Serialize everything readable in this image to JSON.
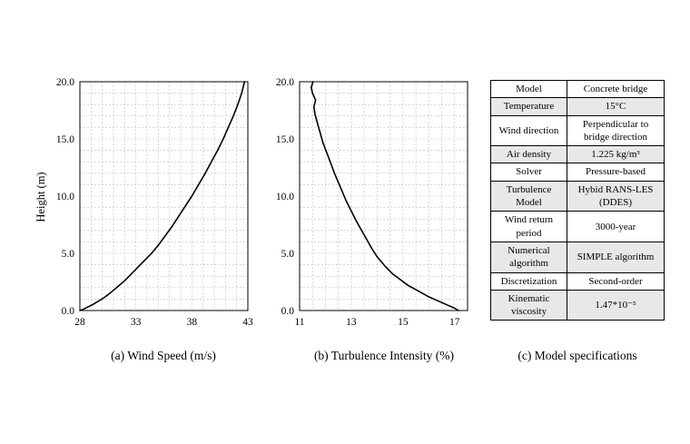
{
  "figure": {
    "captions": {
      "a": "(a) Wind Speed (m/s)",
      "b": "(b) Turbulence Intensity (%)",
      "c": "(c) Model specifications"
    }
  },
  "chart_data": [
    {
      "type": "line",
      "name": "wind-speed-profile",
      "xlabel": "Wind Speed (m/s)",
      "ylabel": "Height (m)",
      "xlim": [
        28,
        43
      ],
      "ylim": [
        0,
        20
      ],
      "xticks": [
        28,
        33,
        38,
        43
      ],
      "yticks": [
        0,
        5,
        10,
        15,
        20
      ],
      "xtick_decimals": 0,
      "ytick_decimals": 1,
      "grid": true,
      "grid_x_step": 1,
      "grid_y_step": 1,
      "line_color": "#000000",
      "points": [
        [
          28.0,
          0.0
        ],
        [
          28.3,
          0.1
        ],
        [
          28.7,
          0.3
        ],
        [
          29.2,
          0.55
        ],
        [
          29.7,
          0.85
        ],
        [
          30.2,
          1.15
        ],
        [
          30.8,
          1.6
        ],
        [
          31.4,
          2.1
        ],
        [
          32.0,
          2.6
        ],
        [
          32.6,
          3.2
        ],
        [
          33.2,
          3.8
        ],
        [
          33.8,
          4.4
        ],
        [
          34.4,
          5.0
        ],
        [
          35.0,
          5.7
        ],
        [
          35.6,
          6.5
        ],
        [
          36.2,
          7.3
        ],
        [
          36.8,
          8.2
        ],
        [
          37.4,
          9.1
        ],
        [
          38.0,
          10.0
        ],
        [
          38.6,
          11.0
        ],
        [
          39.2,
          12.0
        ],
        [
          39.8,
          13.1
        ],
        [
          40.3,
          14.0
        ],
        [
          40.8,
          15.0
        ],
        [
          41.3,
          16.1
        ],
        [
          41.7,
          17.0
        ],
        [
          42.1,
          18.0
        ],
        [
          42.45,
          19.0
        ],
        [
          42.7,
          20.0
        ]
      ]
    },
    {
      "type": "line",
      "name": "turbulence-intensity-profile",
      "xlabel": "Turbulence Intensity (%)",
      "xlim": [
        11,
        17.5
      ],
      "ylim": [
        0,
        20
      ],
      "xticks": [
        11,
        13,
        15,
        17
      ],
      "yticks": [
        0,
        5,
        10,
        15,
        20
      ],
      "xtick_decimals": 0,
      "ytick_decimals": 1,
      "grid": true,
      "grid_x_step": 0.5,
      "grid_y_step": 1,
      "line_color": "#000000",
      "points": [
        [
          17.15,
          0.0
        ],
        [
          17.0,
          0.2
        ],
        [
          16.7,
          0.5
        ],
        [
          16.3,
          0.9
        ],
        [
          16.0,
          1.2
        ],
        [
          15.6,
          1.7
        ],
        [
          15.2,
          2.2
        ],
        [
          14.9,
          2.7
        ],
        [
          14.6,
          3.2
        ],
        [
          14.3,
          3.9
        ],
        [
          14.0,
          4.7
        ],
        [
          13.8,
          5.4
        ],
        [
          13.6,
          6.2
        ],
        [
          13.4,
          7.0
        ],
        [
          13.2,
          7.8
        ],
        [
          13.0,
          8.7
        ],
        [
          12.8,
          9.6
        ],
        [
          12.65,
          10.4
        ],
        [
          12.5,
          11.2
        ],
        [
          12.35,
          12.0
        ],
        [
          12.2,
          12.9
        ],
        [
          12.05,
          13.8
        ],
        [
          11.9,
          14.7
        ],
        [
          11.8,
          15.5
        ],
        [
          11.7,
          16.3
        ],
        [
          11.6,
          17.1
        ],
        [
          11.55,
          17.8
        ],
        [
          11.62,
          18.4
        ],
        [
          11.5,
          19.0
        ],
        [
          11.45,
          19.5
        ],
        [
          11.52,
          20.0
        ]
      ]
    }
  ],
  "table": {
    "rows": [
      {
        "key": "Model",
        "value": "Concrete bridge"
      },
      {
        "key": "Temperature",
        "value": "15°C"
      },
      {
        "key": "Wind direction",
        "value": "Perpendicular to bridge direction"
      },
      {
        "key": "Air density",
        "value": "1.225 kg/m³"
      },
      {
        "key": "Solver",
        "value": "Pressure-based"
      },
      {
        "key": "Turbulence Model",
        "value": "Hybid RANS-LES (DDES)"
      },
      {
        "key": "Wind return period",
        "value": "3000-year"
      },
      {
        "key": "Numerical algorithm",
        "value": "SIMPLE algorithm"
      },
      {
        "key": "Discretization",
        "value": "Second-order"
      },
      {
        "key": "Kinematic viscosity",
        "value": "1.47*10⁻⁵"
      }
    ]
  }
}
